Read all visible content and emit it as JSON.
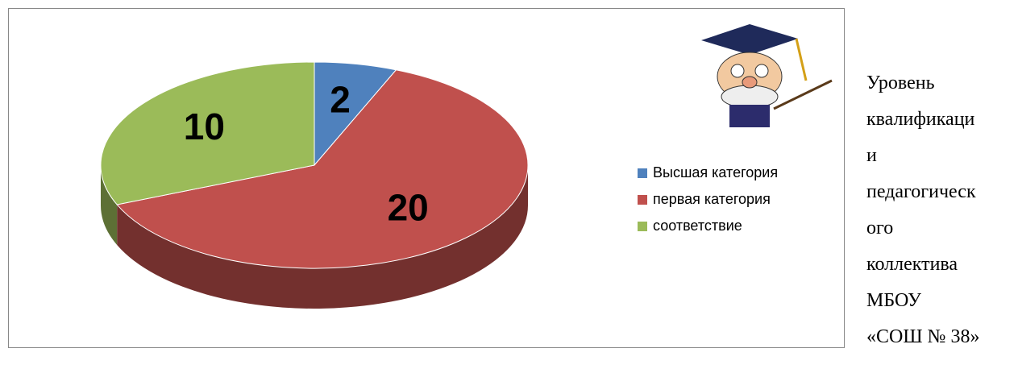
{
  "chart_data": {
    "type": "pie",
    "categories": [
      "Высшая категория",
      "первая категория",
      "соответствие"
    ],
    "series": [
      {
        "colors": [
          "#4f81bd",
          "#c0504d",
          "#9bbb59"
        ],
        "values": [
          2,
          20,
          10
        ]
      }
    ],
    "legend": "right"
  },
  "caption_lines": [
    "Уровень",
    "квалификаци",
    "и",
    "педагогическ",
    "ого",
    "коллектива",
    "МБОУ",
    "«СОШ № 38»"
  ]
}
